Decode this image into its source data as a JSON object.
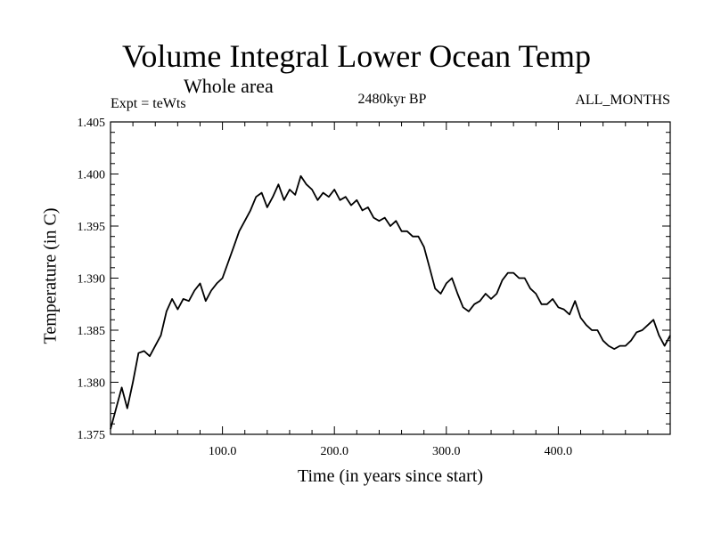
{
  "chart_data": {
    "type": "line",
    "title": "Volume Integral Lower Ocean Temp",
    "subtitle": "Whole area",
    "left_label": "Expt = teWts",
    "center_label": "2480kyr BP",
    "right_label": "ALL_MONTHS",
    "xlabel": "Time (in years since start)",
    "ylabel": "Temperature (in C)",
    "xlim": [
      0,
      500
    ],
    "ylim": [
      1.375,
      1.405
    ],
    "xticks": [
      100,
      200,
      300,
      400
    ],
    "xtick_labels": [
      "100.0",
      "200.0",
      "300.0",
      "400.0"
    ],
    "yticks": [
      1.375,
      1.38,
      1.385,
      1.39,
      1.395,
      1.4,
      1.405
    ],
    "ytick_labels": [
      "1.375",
      "1.380",
      "1.385",
      "1.390",
      "1.395",
      "1.400",
      "1.405"
    ],
    "grid": false,
    "series": [
      {
        "name": "Temperature",
        "color": "#000000",
        "x": [
          0,
          5,
          10,
          15,
          20,
          25,
          30,
          35,
          40,
          45,
          50,
          55,
          60,
          65,
          70,
          75,
          80,
          85,
          90,
          95,
          100,
          105,
          110,
          115,
          120,
          125,
          130,
          135,
          140,
          145,
          150,
          155,
          160,
          165,
          170,
          175,
          180,
          185,
          190,
          195,
          200,
          205,
          210,
          215,
          220,
          225,
          230,
          235,
          240,
          245,
          250,
          255,
          260,
          265,
          270,
          275,
          280,
          285,
          290,
          295,
          300,
          305,
          310,
          315,
          320,
          325,
          330,
          335,
          340,
          345,
          350,
          355,
          360,
          365,
          370,
          375,
          380,
          385,
          390,
          395,
          400,
          405,
          410,
          415,
          420,
          425,
          430,
          435,
          440,
          445,
          450,
          455,
          460,
          465,
          470,
          475,
          480,
          485,
          490,
          495,
          500
        ],
        "values": [
          1.3755,
          1.3775,
          1.3795,
          1.3775,
          1.38,
          1.3828,
          1.383,
          1.3825,
          1.3835,
          1.3845,
          1.3868,
          1.388,
          1.387,
          1.388,
          1.3878,
          1.3888,
          1.3895,
          1.3878,
          1.3888,
          1.3895,
          1.39,
          1.3915,
          1.393,
          1.3945,
          1.3955,
          1.3965,
          1.3978,
          1.3982,
          1.3968,
          1.3978,
          1.399,
          1.3975,
          1.3985,
          1.398,
          1.3998,
          1.399,
          1.3985,
          1.3975,
          1.3982,
          1.3978,
          1.3985,
          1.3975,
          1.3978,
          1.397,
          1.3975,
          1.3965,
          1.3968,
          1.3958,
          1.3955,
          1.3958,
          1.395,
          1.3955,
          1.3945,
          1.3945,
          1.394,
          1.394,
          1.393,
          1.391,
          1.389,
          1.3885,
          1.3895,
          1.39,
          1.3885,
          1.3872,
          1.3868,
          1.3875,
          1.3878,
          1.3885,
          1.388,
          1.3885,
          1.3898,
          1.3905,
          1.3905,
          1.39,
          1.39,
          1.389,
          1.3885,
          1.3875,
          1.3875,
          1.388,
          1.3872,
          1.387,
          1.3865,
          1.3878,
          1.3862,
          1.3855,
          1.385,
          1.385,
          1.384,
          1.3835,
          1.3832,
          1.3835,
          1.3835,
          1.384,
          1.3848,
          1.385,
          1.3855,
          1.386,
          1.3845,
          1.3835,
          1.3845
        ]
      }
    ]
  }
}
